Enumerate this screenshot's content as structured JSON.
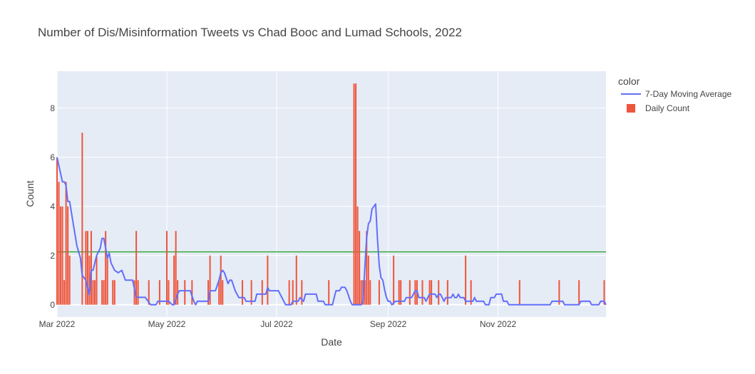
{
  "chart_data": {
    "type": "bar",
    "title": "Number of Dis/Misinformation Tweets vs Chad Booc and Lumad Schools, 2022",
    "xlabel": "Date",
    "ylabel": "Count",
    "x_range": [
      "2022-03-01",
      "2022-12-31"
    ],
    "ylim": [
      -0.5,
      9.5
    ],
    "x_ticks": [
      {
        "date": "2022-03-01",
        "label": "Mar 2022"
      },
      {
        "date": "2022-05-01",
        "label": "May 2022"
      },
      {
        "date": "2022-07-01",
        "label": "Jul 2022"
      },
      {
        "date": "2022-09-01",
        "label": "Sep 2022"
      },
      {
        "date": "2022-11-01",
        "label": "Nov 2022"
      }
    ],
    "y_ticks": [
      0,
      2,
      4,
      6,
      8
    ],
    "grid": true,
    "legend": {
      "title": "color",
      "placement": "right"
    },
    "colors": {
      "bars": "#EF553B",
      "line": "#636EFA",
      "mean_line": "#2ca02c",
      "plot_bg": "#E5ECF6"
    },
    "series": [
      {
        "name": "7-Day Moving Average",
        "type": "line",
        "points": [
          [
            "2022-03-01",
            6.0
          ],
          [
            "2022-03-04",
            5.0
          ],
          [
            "2022-03-05",
            5.0
          ],
          [
            "2022-03-06",
            4.86
          ],
          [
            "2022-03-07",
            4.2
          ],
          [
            "2022-03-08",
            4.2
          ],
          [
            "2022-03-10",
            3.3
          ],
          [
            "2022-03-12",
            2.4
          ],
          [
            "2022-03-14",
            1.9
          ],
          [
            "2022-03-15",
            1.2
          ],
          [
            "2022-03-17",
            1.0
          ],
          [
            "2022-03-19",
            0.4
          ],
          [
            "2022-03-20",
            1.4
          ],
          [
            "2022-03-21",
            1.4
          ],
          [
            "2022-03-23",
            2.0
          ],
          [
            "2022-03-25",
            2.3
          ],
          [
            "2022-03-26",
            2.7
          ],
          [
            "2022-03-27",
            2.7
          ],
          [
            "2022-03-29",
            1.9
          ],
          [
            "2022-03-30",
            2.1
          ],
          [
            "2022-03-31",
            1.7
          ],
          [
            "2022-04-02",
            1.4
          ],
          [
            "2022-04-04",
            1.3
          ],
          [
            "2022-04-06",
            1.4
          ],
          [
            "2022-04-08",
            1.0
          ],
          [
            "2022-04-12",
            1.0
          ],
          [
            "2022-04-14",
            0.3
          ],
          [
            "2022-04-19",
            0.3
          ],
          [
            "2022-04-22",
            0.0
          ],
          [
            "2022-04-25",
            0.0
          ],
          [
            "2022-04-26",
            0.14
          ],
          [
            "2022-05-02",
            0.14
          ],
          [
            "2022-05-04",
            0.0
          ],
          [
            "2022-05-05",
            0.0
          ],
          [
            "2022-05-07",
            0.43
          ],
          [
            "2022-05-08",
            0.57
          ],
          [
            "2022-05-14",
            0.57
          ],
          [
            "2022-05-16",
            0.14
          ],
          [
            "2022-05-17",
            0.0
          ],
          [
            "2022-05-18",
            0.14
          ],
          [
            "2022-05-24",
            0.14
          ],
          [
            "2022-05-25",
            0.57
          ],
          [
            "2022-05-28",
            0.57
          ],
          [
            "2022-05-30",
            1.0
          ],
          [
            "2022-05-31",
            1.3
          ],
          [
            "2022-06-01",
            1.4
          ],
          [
            "2022-06-02",
            1.3
          ],
          [
            "2022-06-04",
            0.86
          ],
          [
            "2022-06-05",
            1.0
          ],
          [
            "2022-06-06",
            1.0
          ],
          [
            "2022-06-08",
            0.57
          ],
          [
            "2022-06-10",
            0.29
          ],
          [
            "2022-06-13",
            0.29
          ],
          [
            "2022-06-14",
            0.14
          ],
          [
            "2022-06-19",
            0.14
          ],
          [
            "2022-06-20",
            0.43
          ],
          [
            "2022-06-25",
            0.43
          ],
          [
            "2022-06-26",
            0.7
          ],
          [
            "2022-06-27",
            0.57
          ],
          [
            "2022-07-02",
            0.57
          ],
          [
            "2022-07-05",
            0.14
          ],
          [
            "2022-07-06",
            0.0
          ],
          [
            "2022-07-09",
            0.0
          ],
          [
            "2022-07-10",
            0.14
          ],
          [
            "2022-07-13",
            0.14
          ],
          [
            "2022-07-14",
            0.29
          ],
          [
            "2022-07-16",
            0.14
          ],
          [
            "2022-07-17",
            0.43
          ],
          [
            "2022-07-23",
            0.43
          ],
          [
            "2022-07-24",
            0.14
          ],
          [
            "2022-07-27",
            0.14
          ],
          [
            "2022-07-28",
            0.0
          ],
          [
            "2022-08-01",
            0.0
          ],
          [
            "2022-08-02",
            0.29
          ],
          [
            "2022-08-03",
            0.57
          ],
          [
            "2022-08-05",
            0.57
          ],
          [
            "2022-08-06",
            0.71
          ],
          [
            "2022-08-08",
            0.71
          ],
          [
            "2022-08-09",
            0.57
          ],
          [
            "2022-08-11",
            0.14
          ],
          [
            "2022-08-12",
            0.0
          ],
          [
            "2022-08-17",
            0.0
          ],
          [
            "2022-08-18",
            0.14
          ],
          [
            "2022-08-19",
            1.5
          ],
          [
            "2022-08-20",
            2.7
          ],
          [
            "2022-08-21",
            3.3
          ],
          [
            "2022-08-22",
            3.4
          ],
          [
            "2022-08-23",
            3.9
          ],
          [
            "2022-08-24",
            4.0
          ],
          [
            "2022-08-25",
            4.1
          ],
          [
            "2022-08-26",
            2.7
          ],
          [
            "2022-08-27",
            1.6
          ],
          [
            "2022-08-28",
            1.1
          ],
          [
            "2022-08-29",
            1.0
          ],
          [
            "2022-08-30",
            0.6
          ],
          [
            "2022-08-31",
            0.3
          ],
          [
            "2022-09-01",
            0.14
          ],
          [
            "2022-09-02",
            0.14
          ],
          [
            "2022-09-03",
            0.0
          ],
          [
            "2022-09-05",
            0.14
          ],
          [
            "2022-09-10",
            0.14
          ],
          [
            "2022-09-11",
            0.29
          ],
          [
            "2022-09-14",
            0.29
          ],
          [
            "2022-09-15",
            0.43
          ],
          [
            "2022-09-16",
            0.57
          ],
          [
            "2022-09-17",
            0.57
          ],
          [
            "2022-09-18",
            0.29
          ],
          [
            "2022-09-21",
            0.29
          ],
          [
            "2022-09-22",
            0.14
          ],
          [
            "2022-09-23",
            0.29
          ],
          [
            "2022-09-24",
            0.43
          ],
          [
            "2022-09-27",
            0.43
          ],
          [
            "2022-09-28",
            0.29
          ],
          [
            "2022-09-29",
            0.43
          ],
          [
            "2022-09-30",
            0.43
          ],
          [
            "2022-10-01",
            0.29
          ],
          [
            "2022-10-02",
            0.14
          ],
          [
            "2022-10-03",
            0.29
          ],
          [
            "2022-10-06",
            0.29
          ],
          [
            "2022-10-07",
            0.43
          ],
          [
            "2022-10-08",
            0.29
          ],
          [
            "2022-10-09",
            0.29
          ],
          [
            "2022-10-10",
            0.43
          ],
          [
            "2022-10-11",
            0.29
          ],
          [
            "2022-10-13",
            0.29
          ],
          [
            "2022-10-14",
            0.14
          ],
          [
            "2022-10-18",
            0.14
          ],
          [
            "2022-10-19",
            0.29
          ],
          [
            "2022-10-20",
            0.14
          ],
          [
            "2022-10-24",
            0.14
          ],
          [
            "2022-10-25",
            0.0
          ],
          [
            "2022-10-27",
            0.0
          ],
          [
            "2022-10-28",
            0.29
          ],
          [
            "2022-10-30",
            0.29
          ],
          [
            "2022-10-31",
            0.43
          ],
          [
            "2022-11-03",
            0.43
          ],
          [
            "2022-11-04",
            0.14
          ],
          [
            "2022-11-06",
            0.14
          ],
          [
            "2022-11-07",
            0.0
          ],
          [
            "2022-11-30",
            0.0
          ],
          [
            "2022-12-01",
            0.14
          ],
          [
            "2022-12-07",
            0.14
          ],
          [
            "2022-12-08",
            0.0
          ],
          [
            "2022-12-16",
            0.0
          ],
          [
            "2022-12-17",
            0.14
          ],
          [
            "2022-12-22",
            0.14
          ],
          [
            "2022-12-23",
            0.0
          ],
          [
            "2022-12-27",
            0.0
          ],
          [
            "2022-12-28",
            0.14
          ],
          [
            "2022-12-30",
            0.14
          ],
          [
            "2022-12-31",
            0.0
          ]
        ]
      },
      {
        "name": "Daily Count",
        "type": "bar",
        "points": [
          [
            "2022-03-01",
            6
          ],
          [
            "2022-03-02",
            5
          ],
          [
            "2022-03-03",
            4
          ],
          [
            "2022-03-04",
            4
          ],
          [
            "2022-03-05",
            1
          ],
          [
            "2022-03-06",
            5
          ],
          [
            "2022-03-07",
            4
          ],
          [
            "2022-03-08",
            2
          ],
          [
            "2022-03-15",
            7
          ],
          [
            "2022-03-17",
            3
          ],
          [
            "2022-03-18",
            3
          ],
          [
            "2022-03-19",
            2
          ],
          [
            "2022-03-20",
            3
          ],
          [
            "2022-03-21",
            1
          ],
          [
            "2022-03-22",
            1
          ],
          [
            "2022-03-23",
            2
          ],
          [
            "2022-03-26",
            1
          ],
          [
            "2022-03-27",
            1
          ],
          [
            "2022-03-28",
            3
          ],
          [
            "2022-03-29",
            2
          ],
          [
            "2022-04-01",
            1
          ],
          [
            "2022-04-02",
            1
          ],
          [
            "2022-04-13",
            1
          ],
          [
            "2022-04-14",
            3
          ],
          [
            "2022-04-15",
            1
          ],
          [
            "2022-04-21",
            1
          ],
          [
            "2022-04-27",
            1
          ],
          [
            "2022-05-01",
            3
          ],
          [
            "2022-05-02",
            1
          ],
          [
            "2022-05-05",
            2
          ],
          [
            "2022-05-06",
            3
          ],
          [
            "2022-05-07",
            1
          ],
          [
            "2022-05-11",
            1
          ],
          [
            "2022-05-15",
            1
          ],
          [
            "2022-05-24",
            1
          ],
          [
            "2022-05-25",
            2
          ],
          [
            "2022-05-30",
            1
          ],
          [
            "2022-05-31",
            2
          ],
          [
            "2022-06-01",
            1
          ],
          [
            "2022-06-12",
            1
          ],
          [
            "2022-06-17",
            1
          ],
          [
            "2022-06-23",
            1
          ],
          [
            "2022-06-26",
            2
          ],
          [
            "2022-07-08",
            1
          ],
          [
            "2022-07-10",
            1
          ],
          [
            "2022-07-12",
            2
          ],
          [
            "2022-07-15",
            1
          ],
          [
            "2022-07-30",
            1
          ],
          [
            "2022-08-13",
            9
          ],
          [
            "2022-08-14",
            9
          ],
          [
            "2022-08-15",
            4
          ],
          [
            "2022-08-16",
            3
          ],
          [
            "2022-08-17",
            1
          ],
          [
            "2022-08-18",
            1
          ],
          [
            "2022-08-19",
            1
          ],
          [
            "2022-08-20",
            3
          ],
          [
            "2022-08-21",
            2
          ],
          [
            "2022-08-22",
            1
          ],
          [
            "2022-08-27",
            1
          ],
          [
            "2022-09-04",
            2
          ],
          [
            "2022-09-07",
            1
          ],
          [
            "2022-09-08",
            1
          ],
          [
            "2022-09-13",
            1
          ],
          [
            "2022-09-16",
            1
          ],
          [
            "2022-09-17",
            1
          ],
          [
            "2022-09-20",
            1
          ],
          [
            "2022-09-24",
            1
          ],
          [
            "2022-09-25",
            1
          ],
          [
            "2022-09-29",
            1
          ],
          [
            "2022-10-04",
            1
          ],
          [
            "2022-10-14",
            2
          ],
          [
            "2022-10-17",
            1
          ],
          [
            "2022-11-13",
            1
          ],
          [
            "2022-12-05",
            1
          ],
          [
            "2022-12-16",
            1
          ],
          [
            "2022-12-30",
            1
          ]
        ]
      }
    ],
    "mean_line": {
      "y": 2.15
    }
  }
}
